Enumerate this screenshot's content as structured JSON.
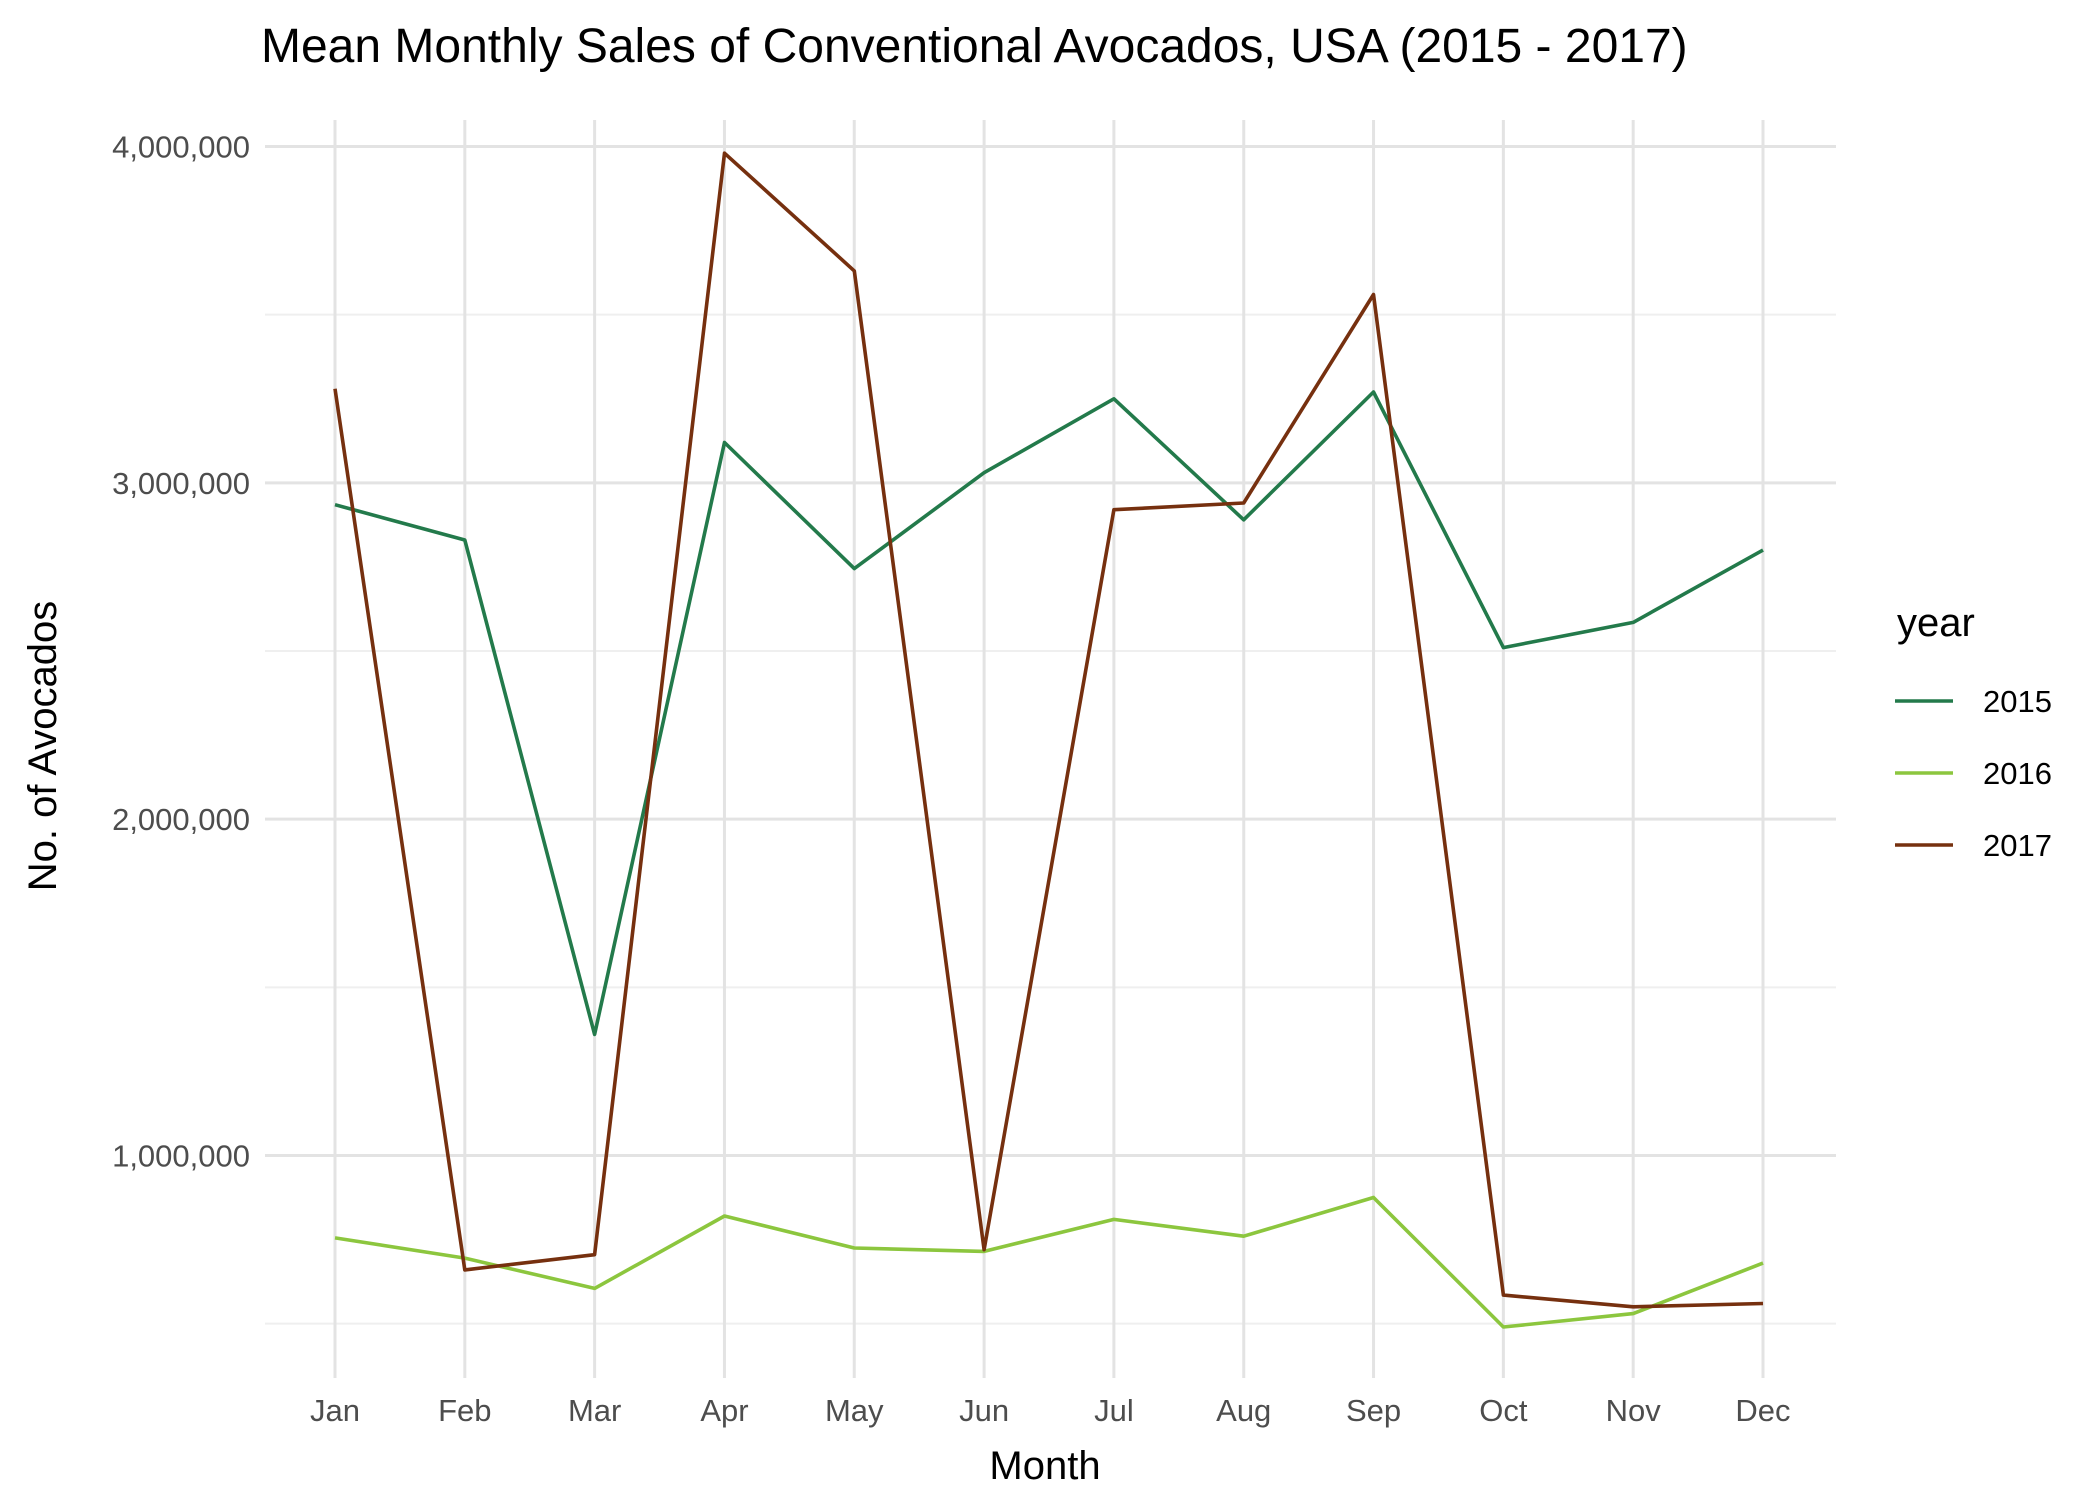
{
  "chart_data": {
    "type": "line",
    "title": "Mean Monthly Sales of Conventional Avocados, USA (2015 - 2017)",
    "xlabel": "Month",
    "ylabel": "No. of Avocados",
    "categories": [
      "Jan",
      "Feb",
      "Mar",
      "Apr",
      "May",
      "Jun",
      "Jul",
      "Aug",
      "Sep",
      "Oct",
      "Nov",
      "Dec"
    ],
    "ylim": [
      400000,
      4050000
    ],
    "yticks": [
      1000000,
      2000000,
      3000000,
      4000000
    ],
    "ytick_labels": [
      "1,000,000",
      "2,000,000",
      "3,000,000",
      "4,000,000"
    ],
    "yminor": [
      500000,
      1500000,
      2500000,
      3500000
    ],
    "grid": true,
    "legend": {
      "title": "year",
      "position": "right"
    },
    "series": [
      {
        "name": "2015",
        "color": "#237a4b",
        "values": [
          2935000,
          2830000,
          1360000,
          3120000,
          2745000,
          3030000,
          3250000,
          2890000,
          3270000,
          2510000,
          2585000,
          2800000
        ]
      },
      {
        "name": "2016",
        "color": "#8cc63e",
        "values": [
          755000,
          695000,
          605000,
          820000,
          725000,
          715000,
          810000,
          760000,
          875000,
          490000,
          530000,
          680000
        ]
      },
      {
        "name": "2017",
        "color": "#76300f",
        "values": [
          3280000,
          660000,
          705000,
          3980000,
          3630000,
          720000,
          2920000,
          2940000,
          3560000,
          585000,
          550000,
          560000
        ]
      }
    ]
  }
}
